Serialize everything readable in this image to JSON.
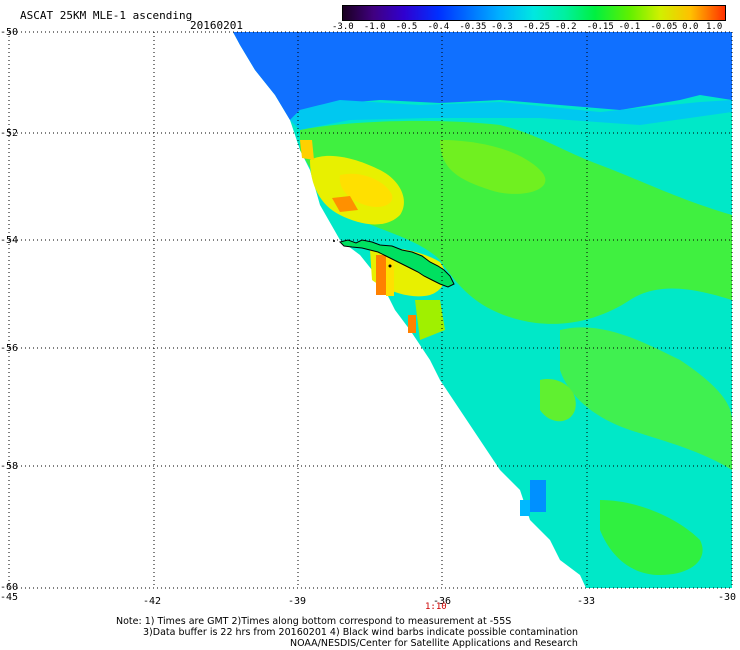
{
  "header": {
    "title": "ASCAT 25KM MLE-1 ascending",
    "date": "20160201"
  },
  "colorbar": {
    "ticks": [
      "-3.0",
      "-1.0",
      "-0.5",
      "-0.4",
      "-0.35",
      "-0.3",
      "-0.25",
      "-0.2",
      "-0.15",
      "-0.1",
      "-0.05",
      "0.0",
      "1.0"
    ],
    "colors": [
      "#1a0020",
      "#4a0080",
      "#2a00d0",
      "#0030ff",
      "#0070ff",
      "#00b0ff",
      "#00e8e0",
      "#00f0a0",
      "#00f040",
      "#60f000",
      "#d0f000",
      "#ffc000",
      "#ff3000"
    ]
  },
  "map": {
    "lat_labels": [
      "-50",
      "-52",
      "-54",
      "-56",
      "-58",
      "-60"
    ],
    "lon_labels": [
      "-45",
      "-42",
      "-39",
      "-36",
      "-33",
      "-30"
    ],
    "time_label": "1:10"
  },
  "footer": {
    "line1": "Note: 1) Times are GMT 2)Times along bottom correspond to measurement at -55S",
    "line2": "3)Data buffer is 22 hrs from 20160201 4) Black wind barbs indicate possible contamination",
    "line3": "NOAA/NESDIS/Center for Satellite Applications and Research"
  }
}
